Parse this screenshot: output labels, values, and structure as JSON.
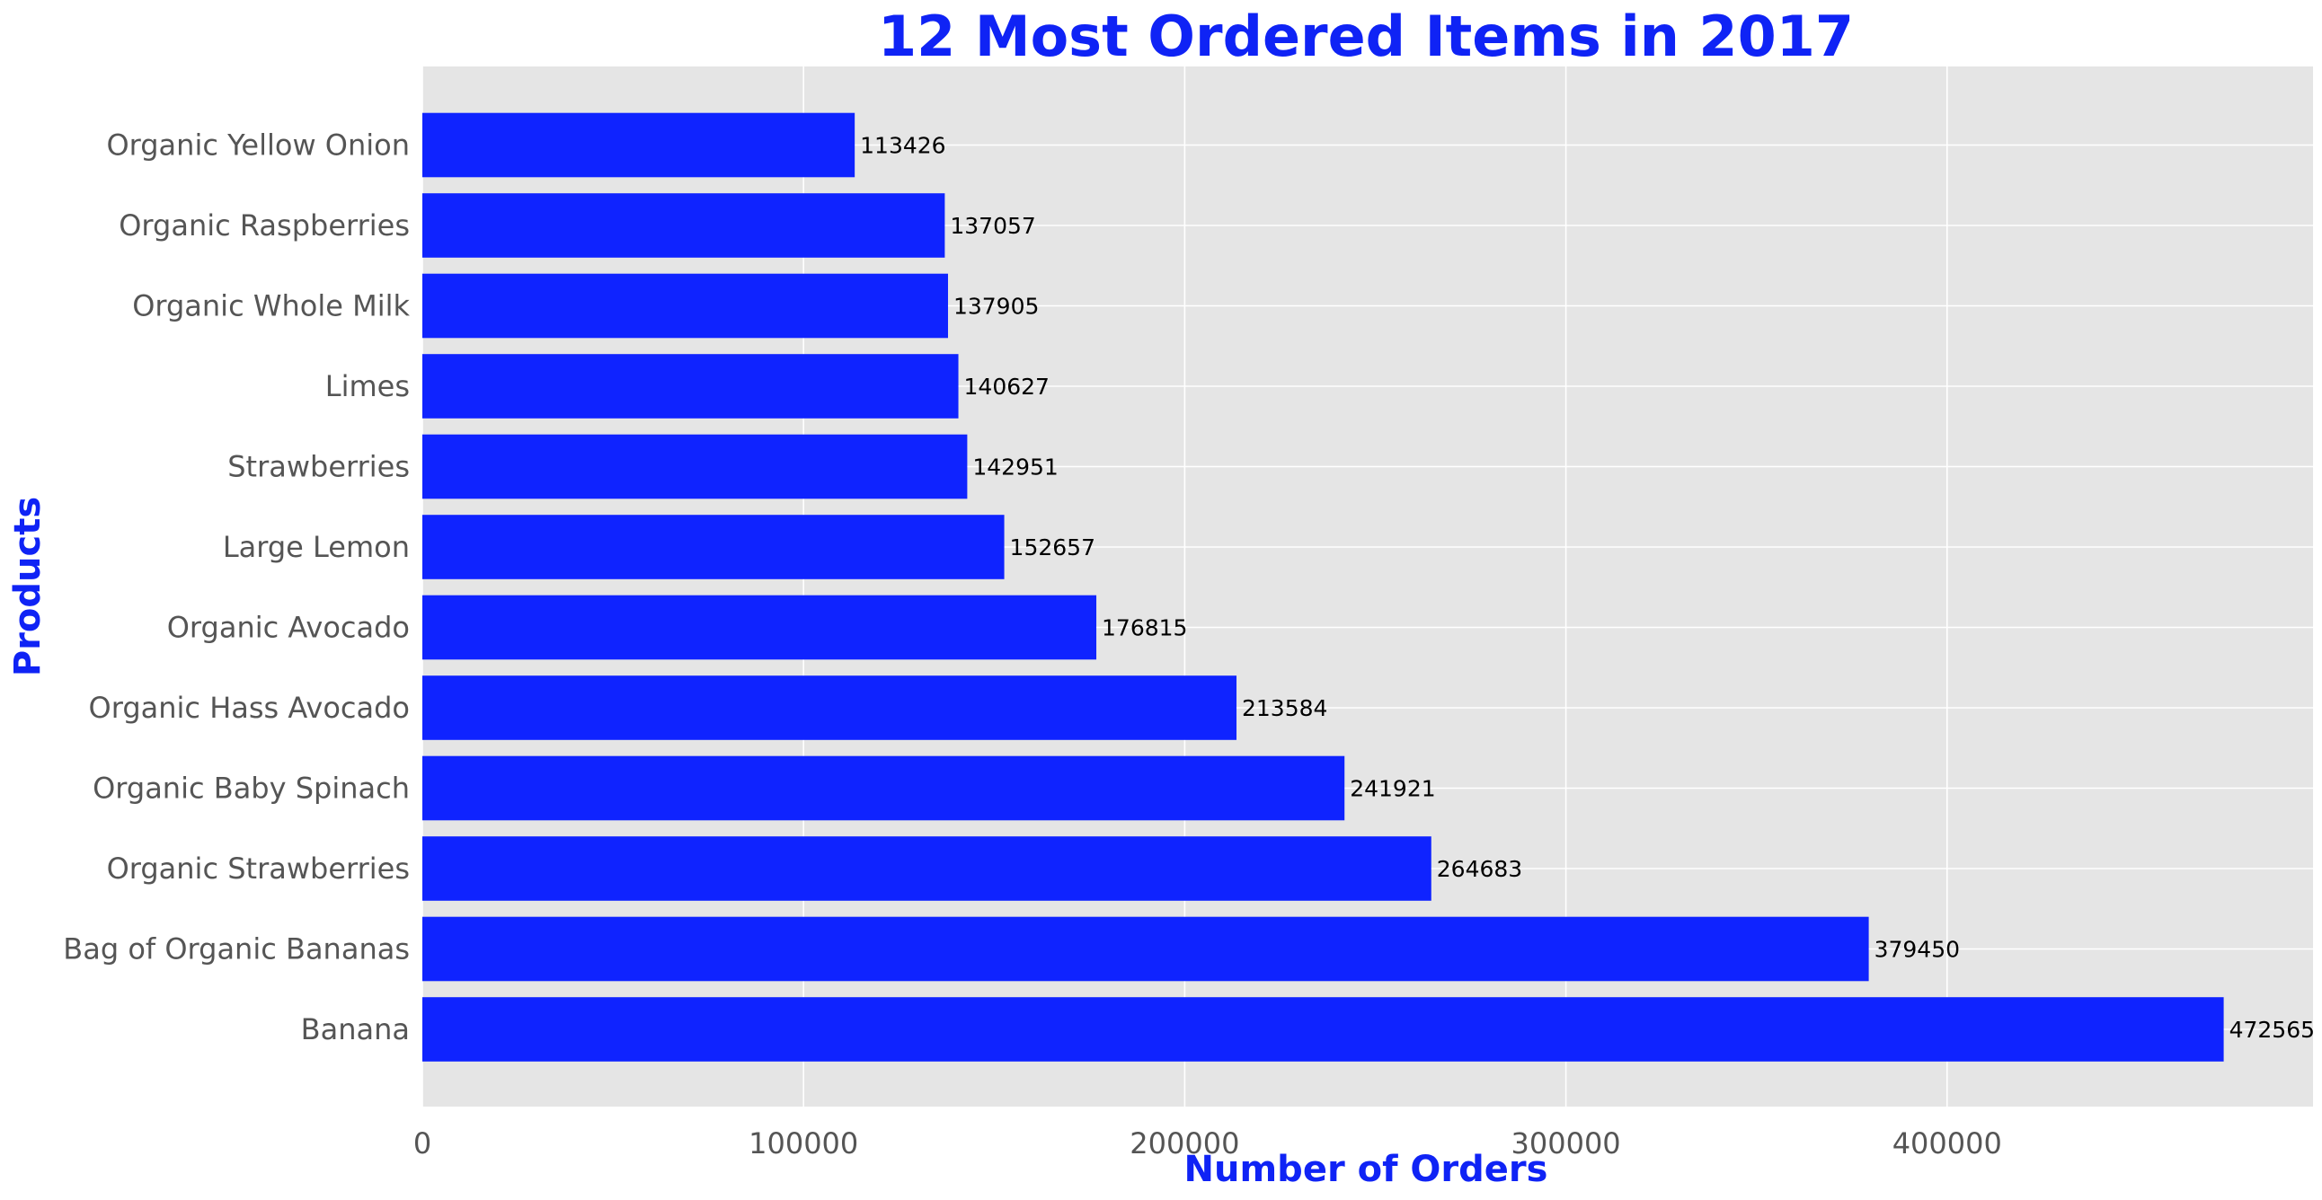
{
  "chart_data": {
    "type": "bar",
    "orientation": "horizontal",
    "title": "12 Most Ordered Items in 2017",
    "xlabel": "Number of Orders",
    "ylabel": "Products",
    "xlim": [
      0,
      496000
    ],
    "xticks": [
      0,
      100000,
      200000,
      300000,
      400000
    ],
    "grid": true,
    "colors": {
      "bar": "#0f23ff",
      "plot_background": "#e5e5e5",
      "grid": "#ffffff",
      "title": "#0f23f5",
      "tick_label": "#555555",
      "data_label": "#000000"
    },
    "categories": [
      "Banana",
      "Bag of Organic Bananas",
      "Organic Strawberries",
      "Organic Baby Spinach",
      "Organic Hass Avocado",
      "Organic Avocado",
      "Large Lemon",
      "Strawberries",
      "Limes",
      "Organic Whole Milk",
      "Organic Raspberries",
      "Organic Yellow Onion"
    ],
    "values": [
      472565,
      379450,
      264683,
      241921,
      213584,
      176815,
      152657,
      142951,
      140627,
      137905,
      137057,
      113426
    ]
  }
}
